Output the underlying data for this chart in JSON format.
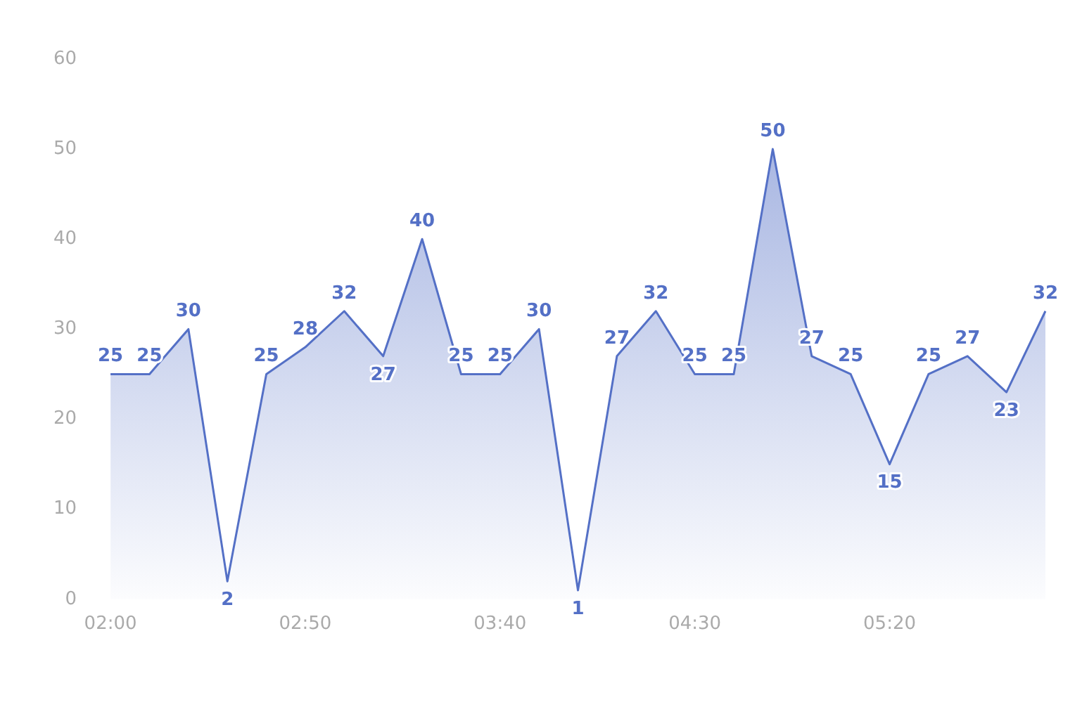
{
  "chart_data": {
    "type": "area",
    "categories": [
      "02:00",
      null,
      null,
      null,
      null,
      "02:50",
      null,
      null,
      null,
      null,
      "03:40",
      null,
      null,
      null,
      null,
      "04:30",
      null,
      null,
      null,
      null,
      "05:20",
      null,
      null,
      null,
      null
    ],
    "series": [
      {
        "color": "#5470c6",
        "values": [
          25,
          25,
          30,
          2,
          25,
          28,
          32,
          27,
          40,
          25,
          25,
          30,
          1,
          27,
          32,
          25,
          25,
          50,
          27,
          25,
          15,
          25,
          27,
          23,
          32
        ]
      }
    ],
    "ylim": [
      0,
      60
    ],
    "yticks": [
      0,
      10,
      20,
      30,
      40,
      50,
      60
    ],
    "grid": false,
    "legend": false,
    "data_labels": true,
    "marker": "none"
  }
}
